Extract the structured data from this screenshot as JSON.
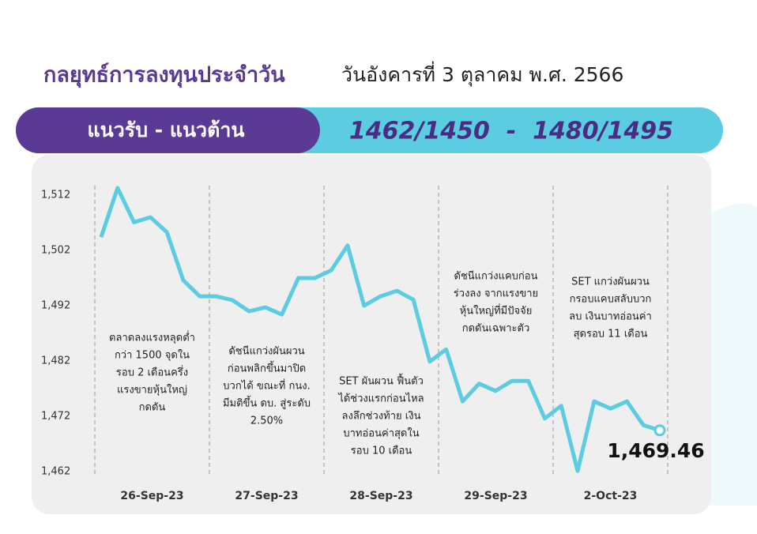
{
  "header": {
    "title": "กลยุทธ์การลงทุนประจำวัน",
    "date": "วันอังคารที่ 3 ตุลาคม พ.ศ. 2566"
  },
  "banner": {
    "label": "แนวรับ - แนวต้าน",
    "levels": "1462/1450  -  1480/1495"
  },
  "chart_data": {
    "type": "line",
    "color": "#5ccde0",
    "days": [
      "26-Sep-23",
      "27-Sep-23",
      "28-Sep-23",
      "29-Sep-23",
      "2-Oct-23"
    ],
    "values": [
      1504.4,
      1513.3,
      1507.1,
      1508,
      1505.3,
      1496.6,
      1493.7,
      1493.7,
      1493,
      1491,
      1491.7,
      1490.4,
      1497,
      1497,
      1498.4,
      1502.9,
      1492,
      1493.7,
      1494.7,
      1493.1,
      1481.9,
      1484.1,
      1474.7,
      1477.9,
      1476.6,
      1478.4,
      1478.4,
      1471.6,
      1473.9,
      1462.1,
      1474.7,
      1473.4,
      1474.7,
      1470.4,
      1469.46
    ],
    "value_labels": [
      null,
      null,
      null,
      null,
      null,
      null,
      null,
      null,
      null,
      null,
      null,
      null,
      null,
      null,
      null,
      null,
      null,
      null,
      null,
      null,
      null,
      null,
      null,
      null,
      null,
      null,
      null,
      null,
      null,
      null,
      null,
      null,
      null,
      null,
      "1,469.46"
    ],
    "ylim": [
      1462,
      1514
    ],
    "yticks": [
      {
        "value": 1462,
        "label": "1,462"
      },
      {
        "value": 1472,
        "label": "1,472"
      },
      {
        "value": 1482,
        "label": "1,482"
      },
      {
        "value": 1492,
        "label": "1,492"
      },
      {
        "value": 1502,
        "label": "1,502"
      },
      {
        "value": 1512,
        "label": "1,512"
      }
    ],
    "annotations": [
      [
        "ตลาดลงแรงหลุดต่ำ",
        "กว่า 1500 จุดใน",
        "รอบ 2 เดือนครึ่ง",
        "แรงขายหุ้นใหญ่",
        "กดดัน"
      ],
      [
        "ดัชนีแกว่งผันผวน",
        "ก่อนพลิกขึ้นมาปิด",
        "บวกได้ ขณะที่ กนง.",
        "มีมติขึ้น ดบ. สู่ระดับ",
        "2.50%"
      ],
      [
        "SET ผันผวน ฟื้นตัว",
        "ได้ช่วงแรกก่อนไหล",
        "ลงลึกช่วงท้าย เงิน",
        "บาทอ่อนค่าสุดใน",
        "รอบ 10 เดือน"
      ],
      [
        "ดัชนีแกว่งแคบก่อน",
        "ร่วงลง จากแรงขาย",
        "หุ้นใหญ่ที่มีปัจจัย",
        "กดดันเฉพาะตัว"
      ],
      [
        "SET แกว่งผันผวน",
        "กรอบแคบสลับบวก",
        "ลบ เงินบาทอ่อนค่า",
        "สุดรอบ 11 เดือน"
      ]
    ]
  }
}
